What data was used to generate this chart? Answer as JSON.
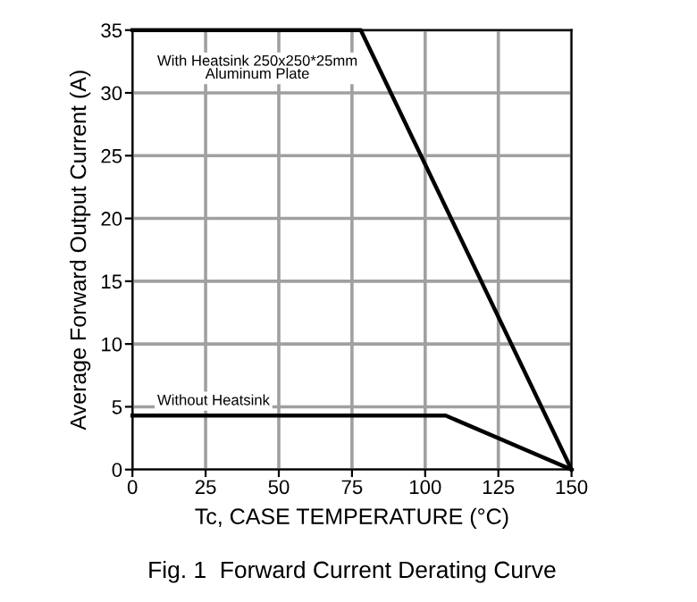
{
  "chart_data": {
    "type": "line",
    "title": "Fig. 1  Forward Current Derating Curve",
    "xlabel": "Tc, CASE TEMPERATURE (°C)",
    "ylabel": "Average Forward Output Current (A)",
    "series": [
      {
        "name": "With Heatsink 250x250*25mm\nAluminum Plate",
        "x": [
          0,
          78,
          150
        ],
        "values": [
          35,
          35,
          0
        ],
        "color": "#000000"
      },
      {
        "name": "Without Heatsink",
        "x": [
          0,
          107,
          150
        ],
        "values": [
          4.3,
          4.3,
          0
        ],
        "color": "#000000"
      }
    ],
    "xlim": [
      0,
      150
    ],
    "xticks": [
      0,
      25,
      50,
      75,
      100,
      125,
      150
    ],
    "ylim": [
      0,
      35
    ],
    "yticks": [
      0,
      5,
      10,
      15,
      20,
      25,
      30,
      35
    ],
    "grid": true,
    "legend": false,
    "marker": "none",
    "line_style": "solid"
  }
}
